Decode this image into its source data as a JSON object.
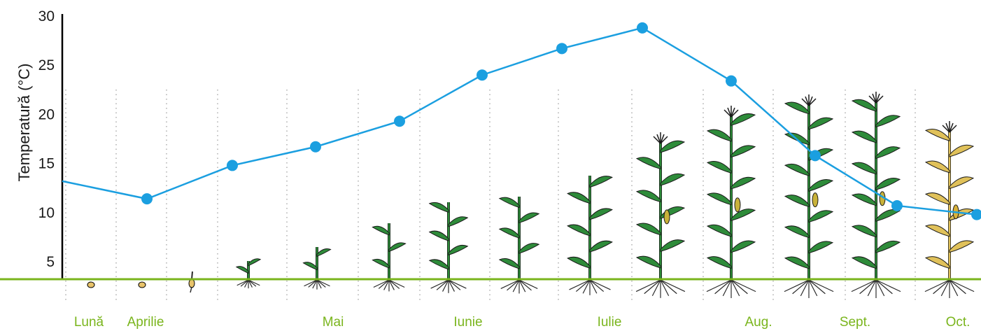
{
  "colors": {
    "line": "#1b9fe0",
    "ground": "#7ab51d",
    "month_text": "#7ab51d",
    "plant_green": "#2e8b3a",
    "plant_dry": "#e0c15a",
    "seed": "#e8c36a",
    "axis": "#000000",
    "grid": "#999999"
  },
  "chart_data": {
    "type": "line",
    "title": "",
    "ylabel": "Temperatură (°C)",
    "xlabel": "",
    "ylim": [
      3,
      30
    ],
    "yticks": [
      "5",
      "10",
      "15",
      "20",
      "25",
      "30"
    ],
    "grid": "vertical dotted",
    "month_labels": [
      "Lună",
      "Aprilie",
      "Mai",
      "Iunie",
      "Iulie",
      "Aug.",
      "Sept.",
      "Oct."
    ],
    "series": [
      {
        "values": [
          13.2,
          11.4,
          14.8,
          16.7,
          19.3,
          24.0,
          26.7,
          28.8,
          23.4,
          15.8,
          10.7,
          9.8
        ]
      }
    ]
  }
}
